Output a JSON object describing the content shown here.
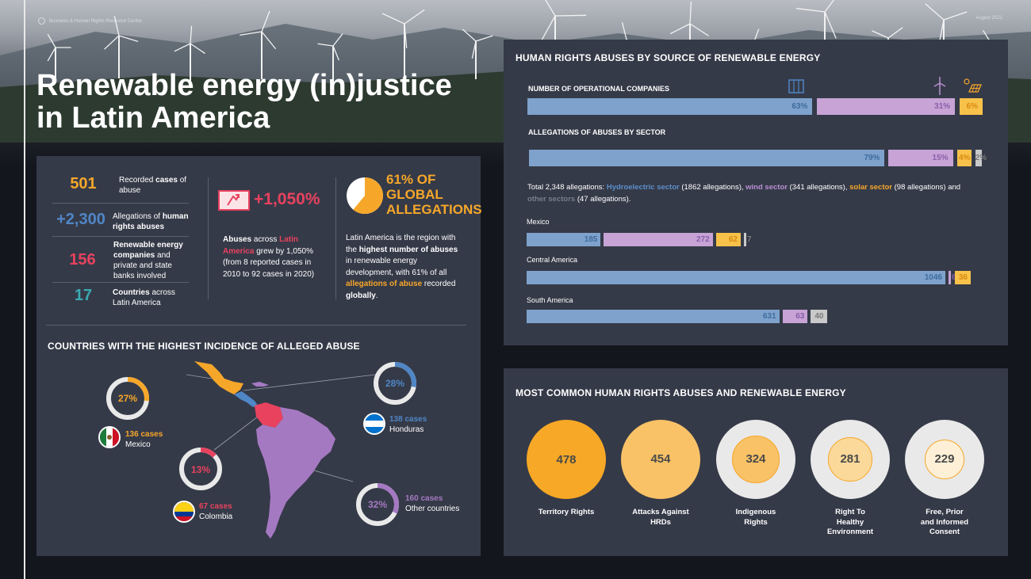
{
  "header": {
    "org": "Business & Human Rights Resource Centre",
    "date": "August 2021",
    "title_line1": "Renewable energy (in)justice",
    "title_line2": "in Latin America"
  },
  "stats": [
    {
      "number": "501",
      "label_pre": "Recorded ",
      "label_bold": "cases",
      "label_post": " of abuse",
      "color": "#f6a72a"
    },
    {
      "number": "+2,300",
      "label_pre": "Allegations of ",
      "label_bold": "human rights abuses",
      "label_post": "",
      "color": "#4f86c6"
    },
    {
      "number": "156",
      "label_pre": "",
      "label_bold": "Renewable energy companies",
      "label_post": " and private and state banks involved",
      "color": "#e8425f"
    },
    {
      "number": "17",
      "label_pre": "",
      "label_bold": "Countries",
      "label_post": " across Latin America",
      "color": "#3aaab0"
    }
  ],
  "growth": {
    "value": "+1,050%",
    "p1_bold": "Abuses",
    "p1_mid": " across ",
    "p1_hl": "Latin America",
    "p1_rest": " grew by 1,050% (from 8 reported cases in 2010 to 92 cases in 2020)"
  },
  "global": {
    "line1": "61% OF",
    "line2": "GLOBAL",
    "line3": "ALLEGATIONS",
    "share": 61,
    "p_a": "Latin America is the region with the ",
    "p_b": "highest number of abuses",
    "p_c": " in renewable energy development, with 61% of all ",
    "p_d": "allegations of abuse",
    "p_e": " recorded ",
    "p_f": "globally",
    "p_g": "."
  },
  "countries_section": {
    "title": "COUNTRIES WITH THE HIGHEST INCIDENCE OF ALLEGED ABUSE",
    "items": [
      {
        "pct": "27%",
        "share": 27,
        "cases": "136 cases",
        "name": "Mexico",
        "color": "#f6a72a"
      },
      {
        "pct": "13%",
        "share": 13,
        "cases": "67 cases",
        "name": "Colombia",
        "color": "#e8425f"
      },
      {
        "pct": "28%",
        "share": 28,
        "cases": "138 cases",
        "name": "Honduras",
        "color": "#4f86c6"
      },
      {
        "pct": "32%",
        "share": 32,
        "cases": "160 cases",
        "name": "Other countries",
        "color": "#a579c2"
      }
    ]
  },
  "source_section": {
    "title": "HUMAN RIGHTS ABUSES BY SOURCE OF RENEWABLE ENERGY",
    "companies_label": "NUMBER OF OPERATIONAL COMPANIES",
    "allegations_label": "ALLEGATIONS OF ABUSES BY SECTOR",
    "icons": [
      "dam-icon",
      "wind-turbine-icon",
      "solar-panel-icon"
    ],
    "totals": {
      "pre": "Total 2,348 allegations: ",
      "hydro": "Hydroelectric sector",
      "hydro_n": " (1862 allegations), ",
      "wind": "wind sector",
      "wind_n": " (341 allegations), ",
      "solar": "solar sector",
      "solar_n": " (98 allegations) and ",
      "other": "other sectors",
      "other_n": " (47 allegations)."
    },
    "regions": [
      "Mexico",
      "Central America",
      "South America"
    ]
  },
  "chart_data": [
    {
      "type": "bar",
      "title": "NUMBER OF OPERATIONAL COMPANIES",
      "orientation": "horizontal-stacked",
      "series": [
        {
          "name": "Hydroelectric",
          "value": 63,
          "label": "63%",
          "color": "#7ea2cc"
        },
        {
          "name": "Wind",
          "value": 31,
          "label": "31%",
          "color": "#c7a3d6"
        },
        {
          "name": "Solar",
          "value": 6,
          "label": "6%",
          "color": "#f8c24a"
        }
      ],
      "unit": "%"
    },
    {
      "type": "bar",
      "title": "ALLEGATIONS OF ABUSES BY SECTOR",
      "orientation": "horizontal-stacked",
      "series": [
        {
          "name": "Hydroelectric",
          "value": 79,
          "label": "79%",
          "color": "#7ea2cc"
        },
        {
          "name": "Wind",
          "value": 15,
          "label": "15%",
          "color": "#c7a3d6"
        },
        {
          "name": "Solar",
          "value": 4,
          "label": "4%",
          "color": "#f8c24a"
        },
        {
          "name": "Other",
          "value": 2,
          "label": "2%",
          "color": "#c9c9c9"
        }
      ],
      "unit": "%"
    },
    {
      "type": "bar",
      "title": "",
      "orientation": "horizontal-stacked",
      "categories": [
        "Mexico",
        "Central America",
        "South America"
      ],
      "series": [
        {
          "name": "Hydroelectric",
          "values": [
            185,
            1046,
            631
          ],
          "labels": [
            "185",
            "1046",
            "631"
          ],
          "color": "#7ea2cc"
        },
        {
          "name": "Wind",
          "values": [
            272,
            6,
            63
          ],
          "labels": [
            "272",
            "6",
            "63"
          ],
          "color": "#c7a3d6"
        },
        {
          "name": "Solar",
          "values": [
            62,
            36,
            0
          ],
          "labels": [
            "62",
            "36",
            ""
          ],
          "color": "#f8c24a"
        },
        {
          "name": "Other",
          "values": [
            7,
            0,
            40
          ],
          "labels": [
            "7",
            "",
            "40"
          ],
          "color": "#c9c9c9"
        }
      ]
    },
    {
      "type": "pie",
      "title": "MOST COMMON HUMAN RIGHTS ABUSES AND RENEWABLE ENERGY",
      "categories": [
        "Territory Rights",
        "Attacks Against HRDs",
        "Indigenous Rights",
        "Right To Healthy Environment",
        "Free, Prior and Informed Consent"
      ],
      "values": [
        478,
        454,
        324,
        281,
        229
      ],
      "labels": [
        "478",
        "454",
        "324",
        "281",
        "229"
      ]
    }
  ],
  "abuses_section": {
    "title": "MOST COMMON HUMAN RIGHTS ABUSES AND RENEWABLE ENERGY",
    "items": [
      {
        "value": "478",
        "l1": "Territory Rights",
        "l2": "",
        "l3": ""
      },
      {
        "value": "454",
        "l1": "Attacks Against",
        "l2": "HRDs",
        "l3": ""
      },
      {
        "value": "324",
        "l1": "Indigenous",
        "l2": "Rights",
        "l3": ""
      },
      {
        "value": "281",
        "l1": "Right To",
        "l2": "Healthy",
        "l3": "Environment"
      },
      {
        "value": "229",
        "l1": "Free, Prior",
        "l2": "and Informed",
        "l3": "Consent"
      }
    ]
  }
}
